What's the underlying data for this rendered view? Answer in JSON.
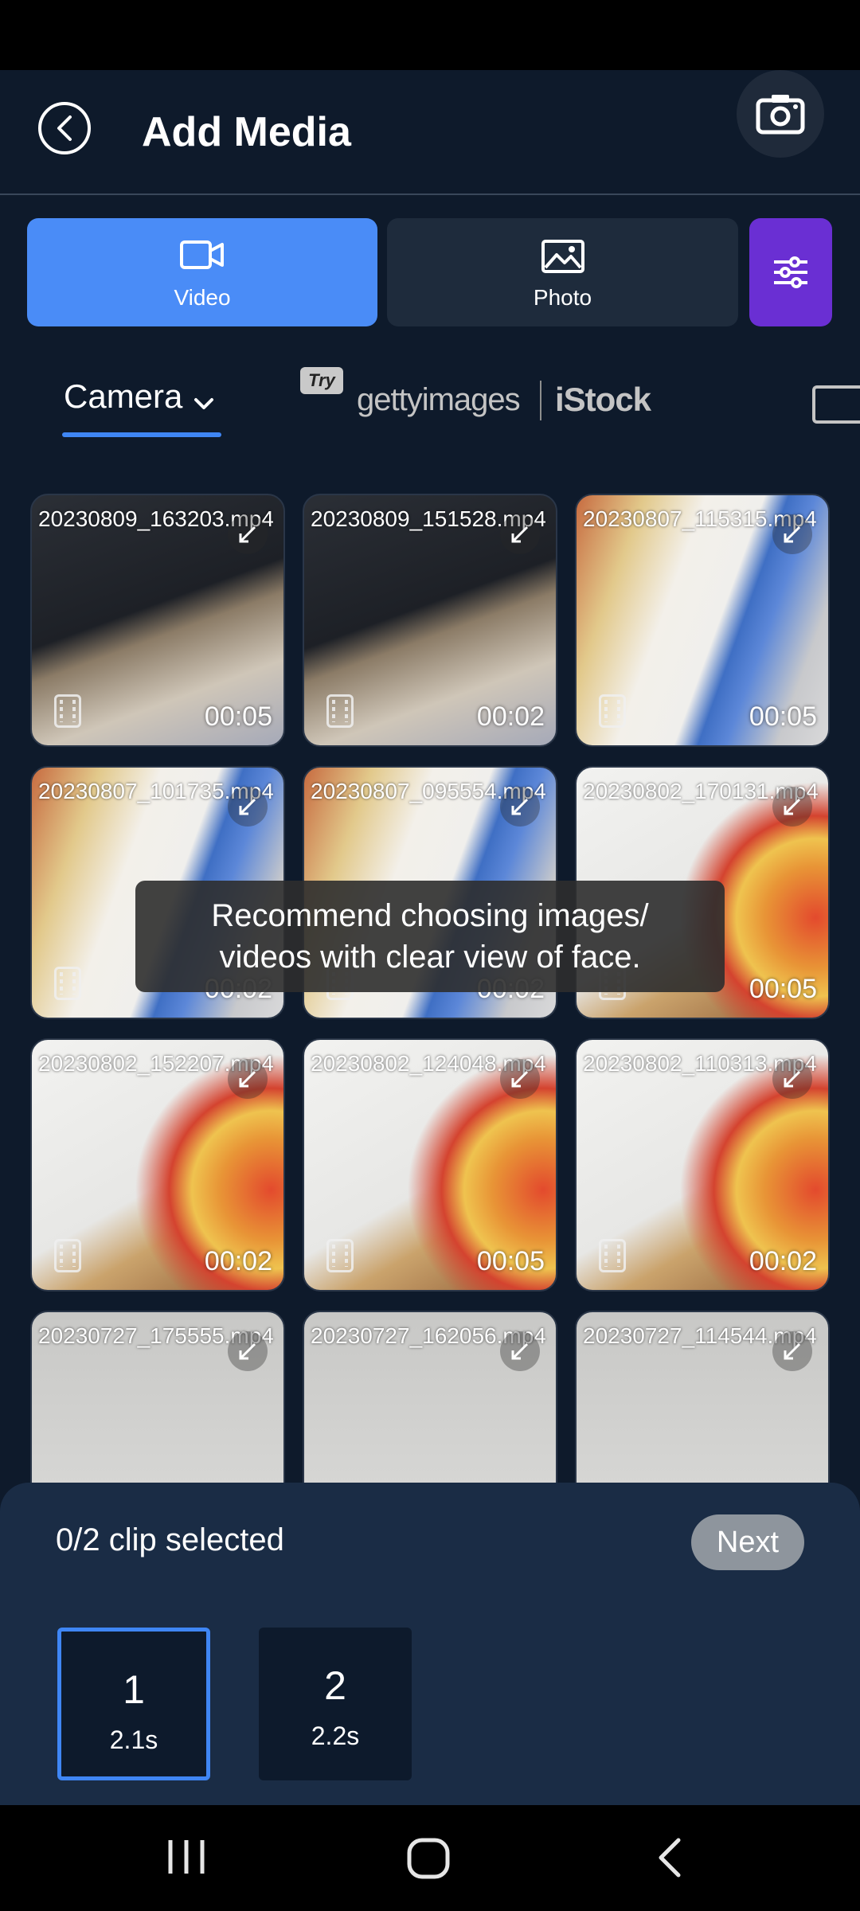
{
  "header": {
    "title": "Add Media"
  },
  "media_tabs": [
    {
      "label": "Video",
      "icon": "video-camera-icon",
      "active": true
    },
    {
      "label": "Photo",
      "icon": "image-icon",
      "active": false
    }
  ],
  "source_tabs": {
    "selected": "Camera",
    "try_badge": "Try",
    "getty": "gettyimages",
    "istock": "iStock"
  },
  "items": [
    {
      "name": "20230809_163203.mp4",
      "duration": "00:05"
    },
    {
      "name": "20230809_151528.mp4",
      "duration": "00:02"
    },
    {
      "name": "20230807_115315.mp4",
      "duration": "00:05"
    },
    {
      "name": "20230807_101735.mp4",
      "duration": "00:02"
    },
    {
      "name": "20230807_095554.mp4",
      "duration": "00:02"
    },
    {
      "name": "20230802_170131.mp4",
      "duration": "00:05"
    },
    {
      "name": "20230802_152207.mp4",
      "duration": "00:02"
    },
    {
      "name": "20230802_124048.mp4",
      "duration": "00:05"
    },
    {
      "name": "20230802_110313.mp4",
      "duration": "00:02"
    },
    {
      "name": "20230727_175555.mp4",
      "duration": ""
    },
    {
      "name": "20230727_162056.mp4",
      "duration": ""
    },
    {
      "name": "20230727_114544.mp4",
      "duration": ""
    }
  ],
  "toast": {
    "line1": "Recommend choosing images/",
    "line2": "videos with clear view of face."
  },
  "selection": {
    "count_text": "0/2 clip selected",
    "next_label": "Next",
    "slots": [
      {
        "number": "1",
        "length": "2.1s",
        "active": true
      },
      {
        "number": "2",
        "length": "2.2s",
        "active": false
      }
    ]
  },
  "colors": {
    "accent": "#4a8cf7",
    "filter": "#6a2fd3",
    "background": "#0e1a2b",
    "panel": "#1a2c45"
  }
}
